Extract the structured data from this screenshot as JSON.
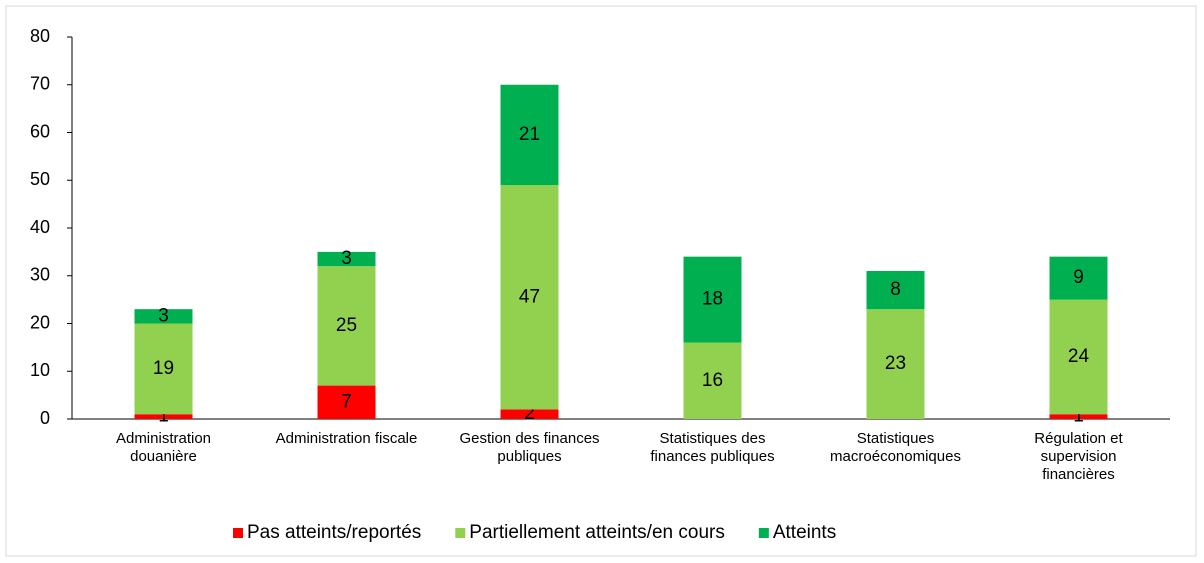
{
  "chart_data": {
    "type": "stacked_bar",
    "categories": [
      "Administration douanière",
      "Administration fiscale",
      "Gestion des finances publiques",
      "Statistiques des finances publiques",
      "Statistiques macroéconomiques",
      "Régulation et supervision financières"
    ],
    "series": [
      {
        "name": "Pas atteints/reportés",
        "color": "#ff0000",
        "values": [
          1,
          7,
          2,
          null,
          null,
          1
        ]
      },
      {
        "name": "Partiellement atteints/en cours",
        "color": "#92d050",
        "values": [
          19,
          25,
          47,
          16,
          23,
          24
        ]
      },
      {
        "name": "Atteints",
        "color": "#00b050",
        "values": [
          3,
          3,
          21,
          18,
          8,
          9
        ]
      }
    ],
    "ylim": [
      0,
      80
    ],
    "yticks": [
      0,
      10,
      20,
      30,
      40,
      50,
      60,
      70,
      80
    ],
    "legend": "bottom"
  }
}
